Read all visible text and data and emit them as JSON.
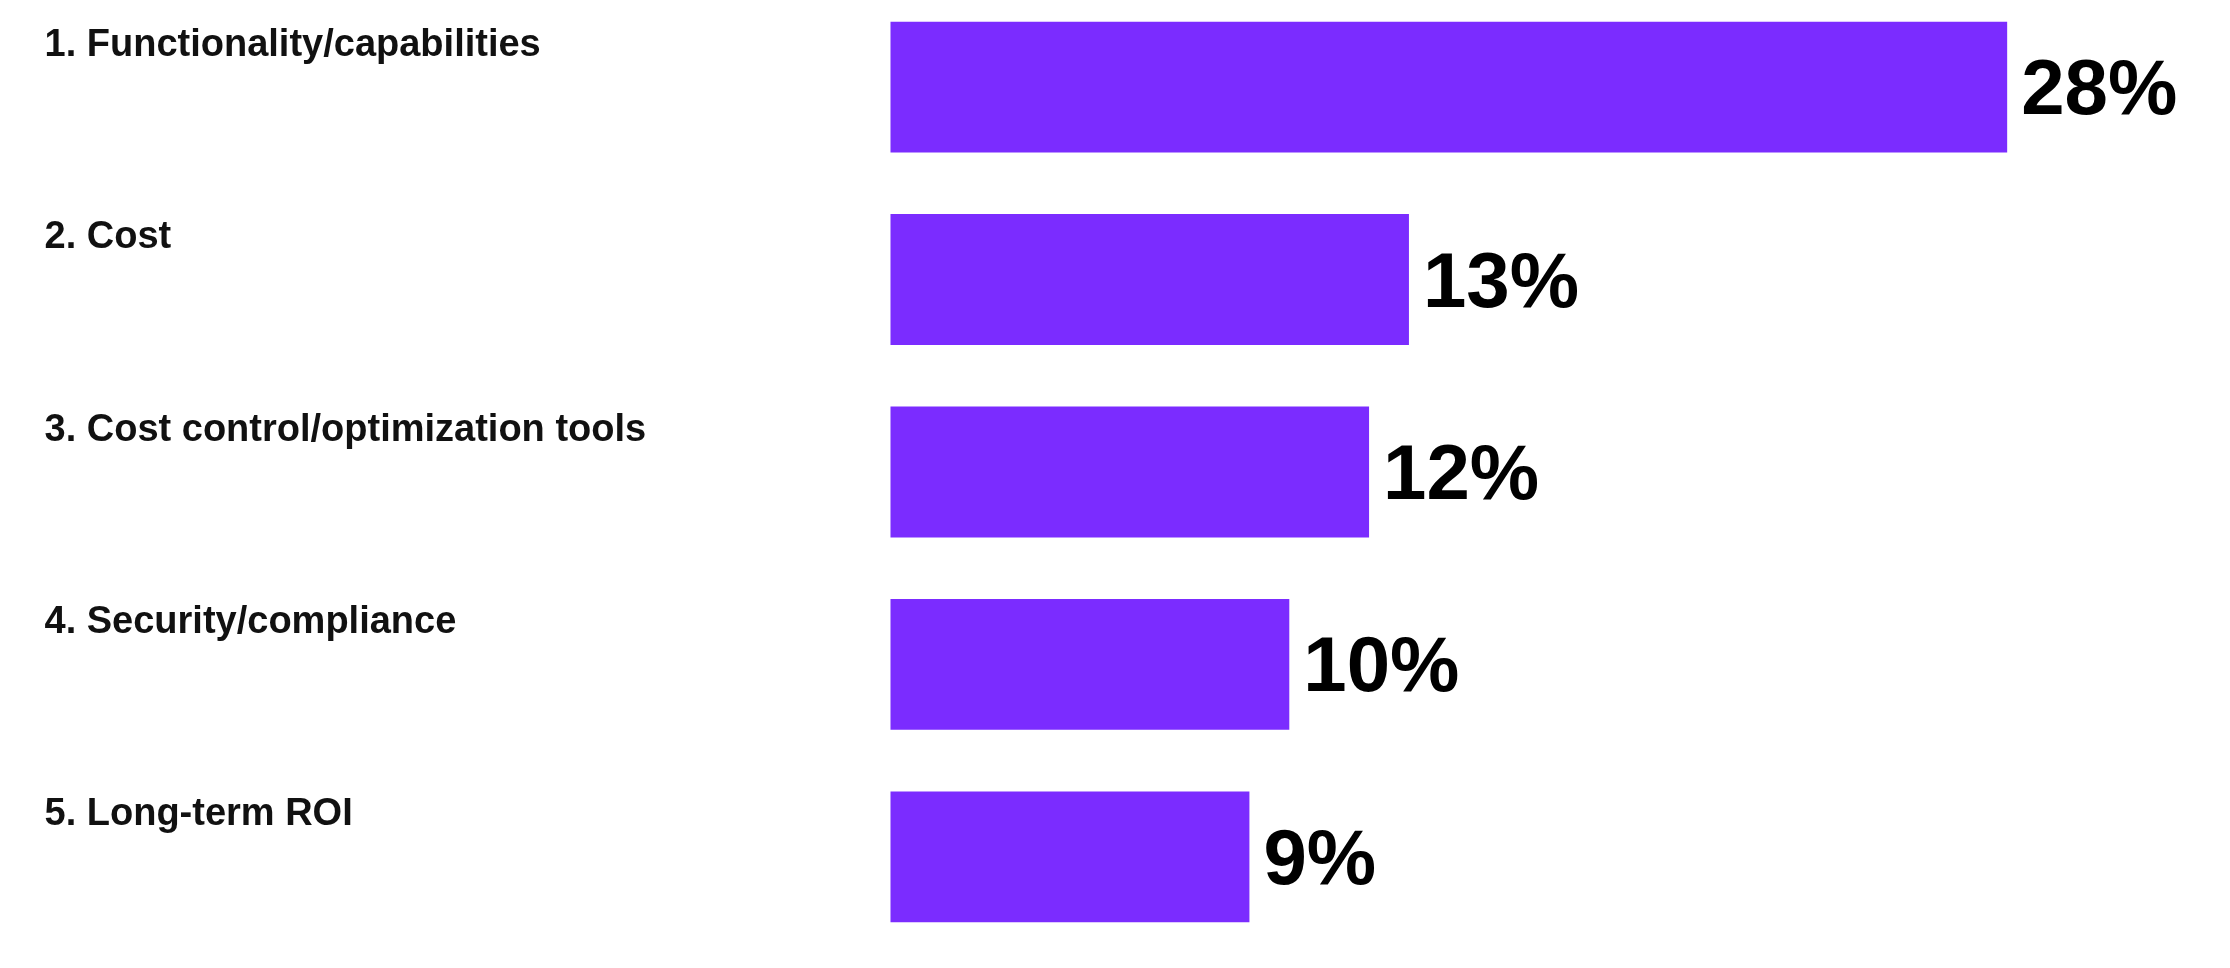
{
  "chart_data": {
    "type": "bar",
    "orientation": "horizontal",
    "categories": [
      "1. Functionality/capabilities",
      "2. Cost",
      "3. Cost control/optimization tools",
      "4. Security/compliance",
      "5. Long-term ROI"
    ],
    "values": [
      28,
      13,
      12,
      10,
      9
    ],
    "value_labels": [
      "28%",
      "13%",
      "12%",
      "10%",
      "9%"
    ],
    "color": "#7b2cff"
  }
}
